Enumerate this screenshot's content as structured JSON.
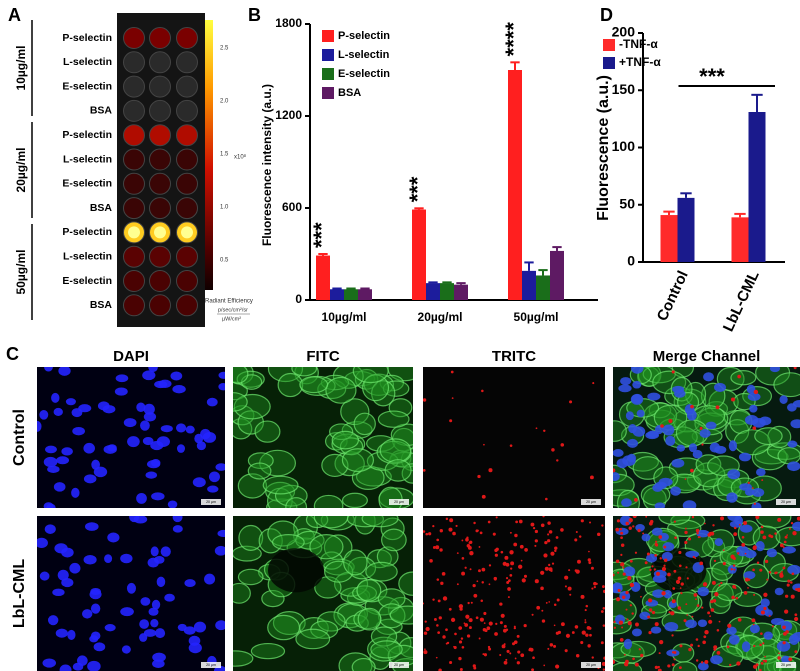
{
  "panel_labels": [
    "A",
    "B",
    "C",
    "D"
  ],
  "panel_a": {
    "rows": [
      "P-selectin",
      "L-selectin",
      "E-selectin",
      "BSA",
      "P-selectin",
      "L-selectin",
      "E-selectin",
      "BSA",
      "P-selectin",
      "L-selectin",
      "E-selectin",
      "BSA"
    ],
    "groups": [
      "10µg/ml",
      "20µg/ml",
      "50µg/ml"
    ],
    "colorbar": {
      "ticks": [
        "2.5",
        "2.0",
        "1.5",
        "1.0",
        "0.5"
      ],
      "scale": "x10⁸",
      "title": "Radiant Efficiency",
      "units": [
        "p/sec/cm²/sr",
        "µW/cm²"
      ]
    }
  },
  "chart_data": [
    {
      "type": "bar",
      "ylabel": "Fluorescence intensity (a.u.)",
      "categories": [
        "10µg/ml",
        "20µg/ml",
        "50µg/ml"
      ],
      "series": [
        {
          "name": "P-selectin",
          "color": "#ff1f1f",
          "values": [
            290,
            590,
            1500
          ],
          "errors": [
            10,
            8,
            50
          ]
        },
        {
          "name": "L-selectin",
          "color": "#1c1c9c",
          "values": [
            70,
            110,
            190
          ],
          "errors": [
            5,
            5,
            55
          ]
        },
        {
          "name": "E-selectin",
          "color": "#1a6e1a",
          "values": [
            70,
            110,
            160
          ],
          "errors": [
            5,
            5,
            35
          ]
        },
        {
          "name": "BSA",
          "color": "#5e1a63",
          "values": [
            70,
            100,
            320
          ],
          "errors": [
            5,
            10,
            25
          ]
        }
      ],
      "annotations": [
        "***",
        "***",
        "****"
      ],
      "ylim": [
        0,
        1800
      ],
      "yticks": [
        0,
        600,
        1200,
        1800
      ],
      "legend": "upper left"
    },
    {
      "type": "bar",
      "ylabel": "Fluorescence (a.u.)",
      "categories": [
        "Control",
        "LbL-CML"
      ],
      "series": [
        {
          "name": "-TNF-α",
          "color": "#ff2a2a",
          "values": [
            41,
            39
          ],
          "errors": [
            3,
            3
          ]
        },
        {
          "name": "+TNF-α",
          "color": "#1a1a8c",
          "values": [
            56,
            131
          ],
          "errors": [
            4,
            15
          ]
        }
      ],
      "annotation": "***",
      "ylim": [
        0,
        200
      ],
      "yticks": [
        0,
        50,
        100,
        150,
        200
      ],
      "legend": "upper left"
    }
  ],
  "panel_c": {
    "columns": [
      "DAPI",
      "FITC",
      "TRITC",
      "Merge Channel"
    ],
    "rows": [
      "Control",
      "LbL-CML"
    ],
    "scale_bar": "20 µm"
  }
}
